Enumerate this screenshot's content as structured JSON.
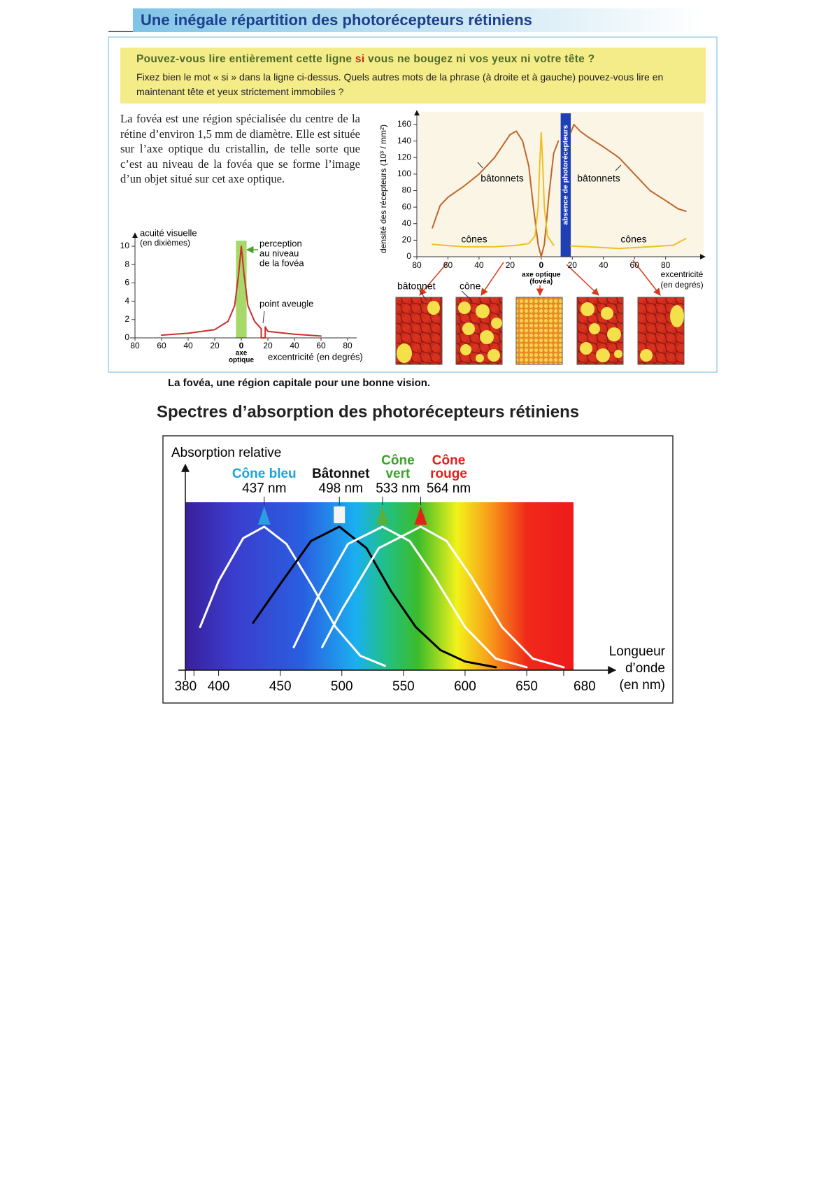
{
  "header": {
    "title": "Une inégale répartition des photorécepteurs rétiniens"
  },
  "question": {
    "title_before": "Pouvez-vous lire entièrement cette ligne ",
    "title_highlight": "si",
    "title_after": " vous ne bougez ni vos yeux ni votre tête ?",
    "instruction": "Fixez bien le mot « si » dans la ligne ci-dessus. Quels autres mots de la phrase (à droite et à gauche) pouvez-vous lire en maintenant tête et yeux strictement immobiles ?"
  },
  "paragraph": "La fovéa est une région spécialisée du centre de la rétine d’environ 1,5 mm de diamètre. Elle est située sur l’axe optique du cristallin, de telle sorte que c’est au niveau de la fovéa que se forme l’image d’un objet situé sur cet axe optique.",
  "caption": "La fovéa, une région capitale pour une bonne vision.",
  "section_title": "Spectres d’absorption des photorécepteurs rétiniens",
  "chart_data": [
    {
      "type": "line",
      "y_label": "acuité visuelle",
      "y_label_note": "(en dixièmes)",
      "x_label": "excentricité (en degrés)",
      "x_zero_note": [
        "axe",
        "optique"
      ],
      "annotation": [
        "perception",
        "au niveau",
        "de la fovéa"
      ],
      "blind_spot_label": "point aveugle",
      "fovea_band": [
        -4,
        4
      ],
      "band_color": "#a6d86a",
      "xlim": [
        -80,
        80
      ],
      "ylim": [
        0,
        10
      ],
      "xticks": [
        {
          "value": -80,
          "label": "80"
        },
        {
          "value": -60,
          "label": "60"
        },
        {
          "value": -40,
          "label": "40"
        },
        {
          "value": -20,
          "label": "20"
        },
        0,
        20,
        40,
        60,
        80
      ],
      "yticks": [
        0,
        2,
        4,
        6,
        8,
        10
      ],
      "series": [
        {
          "color": "#c8302a",
          "x": [
            -60,
            -40,
            -20,
            -10,
            -5,
            -2,
            0,
            2,
            5,
            10,
            15,
            15,
            18,
            18,
            20,
            40,
            60
          ],
          "values": [
            0.3,
            0.5,
            0.9,
            1.8,
            3.5,
            7,
            10,
            7,
            3.5,
            1.8,
            1,
            0,
            0,
            1.2,
            0.7,
            0.4,
            0.2
          ]
        }
      ]
    },
    {
      "type": "line",
      "y_label": "densité des récepteurs (10³ / mm²)",
      "x_label": [
        "excentricité",
        "(en degrés)"
      ],
      "axis_note": [
        "axe optique",
        "(fovéa)"
      ],
      "rod_labels": [
        "bâtonnets",
        "bâtonnets"
      ],
      "cone_labels": [
        "cônes",
        "cônes"
      ],
      "band_label": "absence de photorécepteurs",
      "absence_band": [
        12.5,
        19
      ],
      "band_color": "#1f3fb5",
      "tile_labels": [
        "bâtonnet",
        "cône"
      ],
      "xlim": [
        -80,
        95
      ],
      "ylim": [
        0,
        160
      ],
      "xticks": [
        {
          "value": -80,
          "label": "80"
        },
        {
          "value": -60,
          "label": "60"
        },
        {
          "value": -40,
          "label": "40"
        },
        {
          "value": -20,
          "label": "20"
        },
        0,
        20,
        40,
        60,
        80
      ],
      "yticks": [
        0,
        20,
        40,
        60,
        80,
        100,
        120,
        140,
        160
      ],
      "series": [
        {
          "color": "#c0652e",
          "x": [
            -70,
            -65,
            -60,
            -50,
            -40,
            -30,
            -20,
            -16,
            -12,
            -8,
            -5,
            -2,
            0,
            2,
            5,
            8,
            11,
            12,
            19,
            21,
            25,
            30,
            40,
            50,
            60,
            70,
            80,
            88,
            93
          ],
          "values": [
            35,
            62,
            72,
            85,
            100,
            120,
            148,
            152,
            140,
            110,
            60,
            15,
            0,
            15,
            75,
            125,
            140,
            null,
            150,
            160,
            152,
            145,
            133,
            120,
            100,
            80,
            68,
            58,
            55
          ]
        },
        {
          "color": "#f0c020",
          "x": [
            -70,
            -50,
            -30,
            -15,
            -8,
            -4,
            -2,
            -1,
            0,
            1,
            2,
            4,
            8,
            12,
            19,
            30,
            50,
            70,
            85,
            93
          ],
          "values": [
            15,
            12,
            12,
            14,
            16,
            25,
            60,
            110,
            150,
            110,
            60,
            25,
            14,
            null,
            13,
            12,
            10,
            12,
            14,
            22
          ]
        }
      ]
    },
    {
      "type": "line",
      "y_label": "Absorption relative",
      "x_label": [
        "Longueur",
        "d’onde",
        "(en nm)"
      ],
      "xlim": [
        373,
        688
      ],
      "ylim": [
        0,
        1.17
      ],
      "xticks": [
        380,
        400,
        450,
        500,
        550,
        600,
        650,
        680
      ],
      "series": [
        {
          "label_lines": [
            "Cône bleu"
          ],
          "label_color": "#1aa3dc",
          "marker_color": "#2a9ee0",
          "color": "#ffffff",
          "peak": {
            "value": 437,
            "label": "437 nm"
          },
          "x": [
            385,
            400,
            420,
            437,
            455,
            475,
            495,
            515,
            535
          ],
          "values": [
            0.3,
            0.62,
            0.92,
            1,
            0.88,
            0.6,
            0.3,
            0.1,
            0.03
          ]
        },
        {
          "label_lines": [
            "Bâtonnet"
          ],
          "label_color": "#111111",
          "marker_color": "#f4f4f4",
          "color": "#000000",
          "peak": {
            "value": 498,
            "label": "498 nm"
          },
          "x": [
            428,
            450,
            475,
            498,
            520,
            540,
            560,
            580,
            600,
            625
          ],
          "values": [
            0.33,
            0.6,
            0.9,
            1,
            0.85,
            0.55,
            0.3,
            0.14,
            0.06,
            0.02
          ]
        },
        {
          "label_lines": [
            "Cône",
            "vert"
          ],
          "label_color": "#3aa22a",
          "marker_color": "#58b03c",
          "color": "#ffffff",
          "peak": {
            "value": 533,
            "label": "533 nm"
          },
          "x": [
            461,
            480,
            505,
            533,
            555,
            575,
            600,
            625,
            650
          ],
          "values": [
            0.16,
            0.5,
            0.88,
            1,
            0.9,
            0.65,
            0.3,
            0.08,
            0.02
          ]
        },
        {
          "label_lines": [
            "Cône",
            "rouge"
          ],
          "label_color": "#e0201a",
          "marker_color": "#e2231a",
          "color": "#ffffff",
          "peak": {
            "value": 564,
            "label": "564 nm"
          },
          "x": [
            484,
            500,
            530,
            564,
            585,
            605,
            630,
            655,
            680
          ],
          "values": [
            0.16,
            0.42,
            0.85,
            1,
            0.9,
            0.65,
            0.3,
            0.08,
            0.02
          ]
        }
      ]
    }
  ]
}
